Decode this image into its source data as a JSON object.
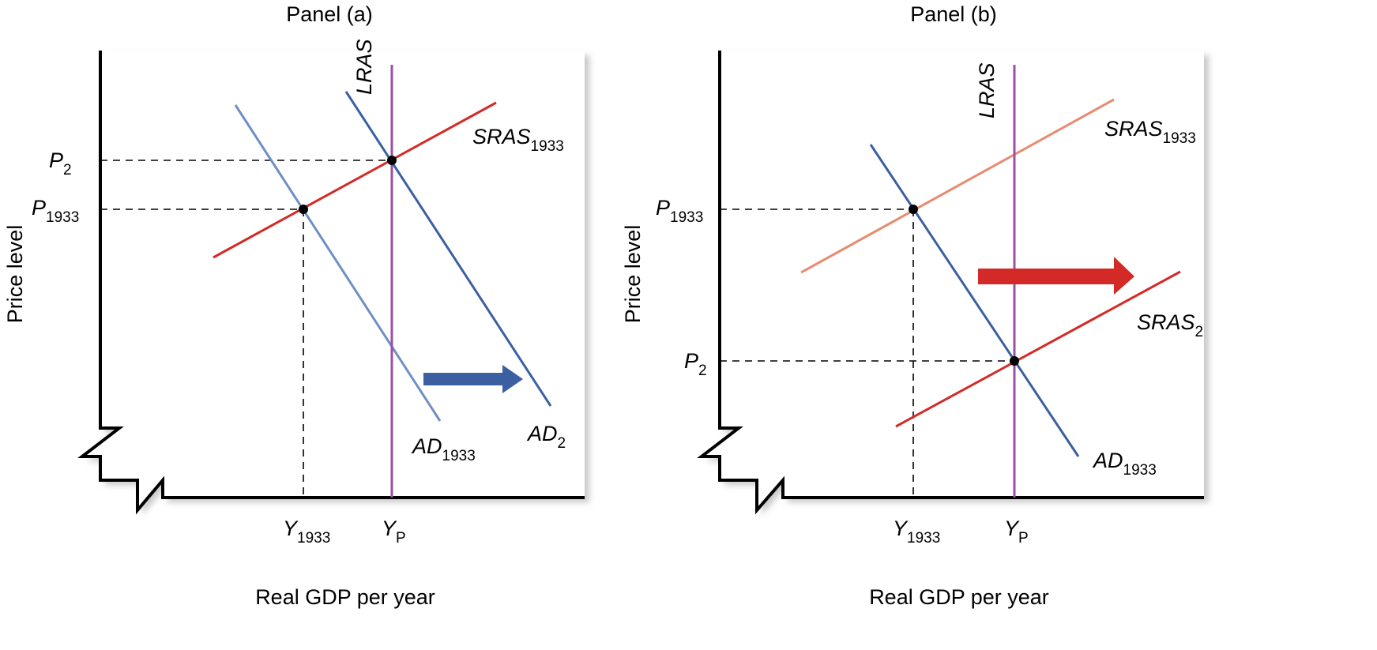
{
  "colors": {
    "lras": "#9b4fa6",
    "sras": "#d42a27",
    "sras_faded": "#e88b70",
    "ad": "#3b5fa1",
    "ad_faded": "#6f8fc6",
    "shadow": "#c8c8c8"
  },
  "panel_a": {
    "title": "Panel (a)",
    "ylabel": "Price level",
    "xlabel": "Real GDP per year",
    "lras": "LRAS",
    "sras_main": "SRAS",
    "sras_sub": "1933",
    "ad1_main": "AD",
    "ad1_sub": "1933",
    "ad2_main": "AD",
    "ad2_sub": "2",
    "p2_main": "P",
    "p2_sub": "2",
    "p1933_main": "P",
    "p1933_sub": "1933",
    "y1933_main": "Y",
    "y1933_sub": "1933",
    "yp_main": "Y",
    "yp_sub": "P",
    "shift": "Aggregate demand shifts right",
    "arrow_icon": "arrow-right-icon"
  },
  "panel_b": {
    "title": "Panel (b)",
    "ylabel": "Price level",
    "xlabel": "Real GDP per year",
    "lras": "LRAS",
    "sras1_main": "SRAS",
    "sras1_sub": "1933",
    "sras2_main": "SRAS",
    "sras2_sub": "2",
    "ad_main": "AD",
    "ad_sub": "1933",
    "p1933_main": "P",
    "p1933_sub": "1933",
    "p2_main": "P",
    "p2_sub": "2",
    "y1933_main": "Y",
    "y1933_sub": "1933",
    "yp_main": "Y",
    "yp_sub": "P",
    "shift": "Short-run aggregate supply shifts right",
    "arrow_icon": "arrow-right-icon"
  }
}
